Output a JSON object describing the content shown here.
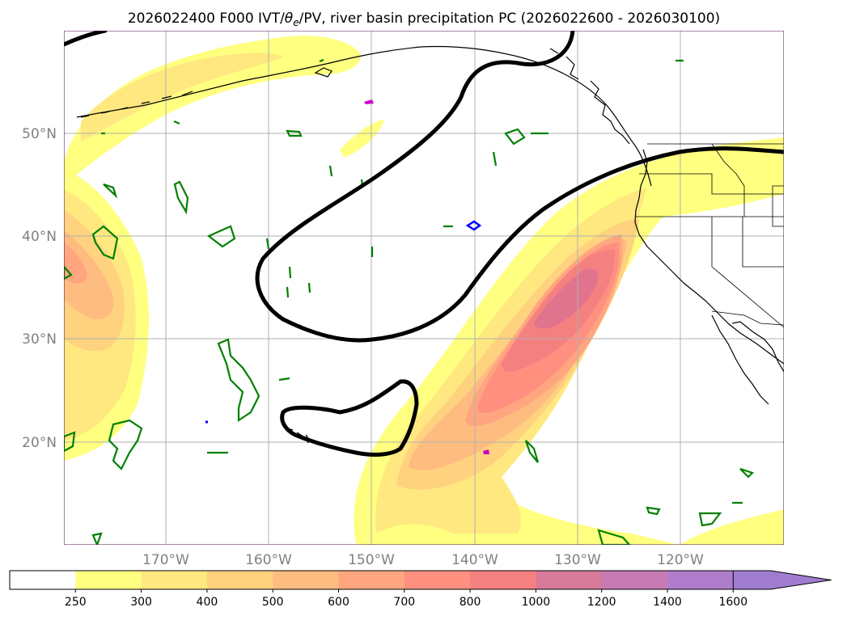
{
  "chart_data": {
    "type": "contour-map",
    "title": "2026022400 F000 IVT/θe/PV, river basin precipitation PC (2026022600 - 2026030100)",
    "title_parts": {
      "prefix": "2026022400 F000 IVT/",
      "theta": "θ",
      "theta_sub": "e",
      "suffix": "/PV, river basin precipitation PC (2026022600 - 2026030100)"
    },
    "longitude_ticks": [
      "170°W",
      "160°W",
      "150°W",
      "140°W",
      "130°W",
      "120°W"
    ],
    "latitude_ticks": [
      "50°N",
      "40°N",
      "30°N",
      "20°N"
    ],
    "lon_range": [
      -180,
      -110
    ],
    "lat_range": [
      10,
      60
    ],
    "grid": true,
    "colorbar": {
      "orientation": "horizontal",
      "extend": "max",
      "levels": [
        250,
        300,
        400,
        500,
        600,
        700,
        800,
        1000,
        1200,
        1400,
        1600
      ],
      "tick_labels": [
        "250",
        "300",
        "400",
        "500",
        "600",
        "700",
        "800",
        "1000",
        "1200",
        "1400",
        "1600"
      ],
      "colors": [
        "#ffffff",
        "#ffff80",
        "#ffe880",
        "#ffd280",
        "#ffbc80",
        "#ffa680",
        "#ff9080",
        "#f58080",
        "#d87a9a",
        "#c77ab4",
        "#b07ccc",
        "#a07cd0"
      ]
    },
    "colors": {
      "pv_contour": "#000000",
      "theta_e_contour": "#008000",
      "coastline": "#000000",
      "extreme_small": "#0000ff",
      "extreme_magenta": "#cc00cc"
    }
  }
}
